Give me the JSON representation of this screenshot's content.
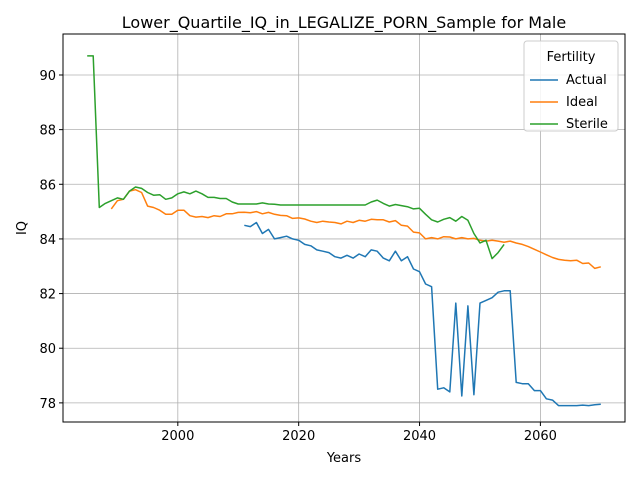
{
  "chart_data": {
    "type": "line",
    "title": "Lower_Quartile_IQ_in_LEGALIZE_PORN_Sample for Male",
    "xlabel": "Years",
    "ylabel": "IQ",
    "xlim": [
      1981,
      2074
    ],
    "ylim": [
      77.3,
      91.5
    ],
    "xticks": [
      2000,
      2020,
      2040,
      2060
    ],
    "yticks": [
      78,
      80,
      82,
      84,
      86,
      88,
      90
    ],
    "grid": true,
    "legend": {
      "title": "Fertility",
      "placement": "top-right"
    },
    "series": [
      {
        "name": "Actual",
        "color": "#1f77b4",
        "x": [
          2011,
          2012,
          2013,
          2014,
          2015,
          2016,
          2017,
          2018,
          2019,
          2020,
          2021,
          2022,
          2023,
          2024,
          2025,
          2026,
          2027,
          2028,
          2029,
          2030,
          2031,
          2032,
          2033,
          2034,
          2035,
          2036,
          2037,
          2038,
          2039,
          2040,
          2041,
          2042,
          2043,
          2044,
          2045,
          2046,
          2047,
          2048,
          2049,
          2050,
          2051,
          2052,
          2053,
          2054,
          2055,
          2056,
          2057,
          2058,
          2059,
          2060,
          2061,
          2062,
          2063,
          2064,
          2065,
          2066,
          2067,
          2068,
          2069,
          2070
        ],
        "values": [
          84.5,
          84.45,
          84.6,
          84.2,
          84.35,
          84.0,
          84.05,
          84.1,
          84.0,
          83.95,
          83.8,
          83.75,
          83.6,
          83.55,
          83.5,
          83.35,
          83.3,
          83.4,
          83.3,
          83.45,
          83.35,
          83.6,
          83.55,
          83.3,
          83.2,
          83.55,
          83.2,
          83.35,
          82.9,
          82.8,
          82.35,
          82.25,
          78.5,
          78.55,
          78.4,
          81.65,
          78.25,
          81.55,
          78.3,
          81.65,
          81.75,
          81.85,
          82.05,
          82.1,
          82.1,
          78.75,
          78.7,
          78.7,
          78.45,
          78.45,
          78.15,
          78.1,
          77.9,
          77.9,
          77.9,
          77.9,
          77.92,
          77.9,
          77.93,
          77.95
        ]
      },
      {
        "name": "Ideal",
        "color": "#ff7f0e",
        "x": [
          1989,
          1990,
          1991,
          1992,
          1993,
          1994,
          1995,
          1996,
          1997,
          1998,
          1999,
          2000,
          2001,
          2002,
          2003,
          2004,
          2005,
          2006,
          2007,
          2008,
          2009,
          2010,
          2011,
          2012,
          2013,
          2014,
          2015,
          2016,
          2017,
          2018,
          2019,
          2020,
          2021,
          2022,
          2023,
          2024,
          2025,
          2026,
          2027,
          2028,
          2029,
          2030,
          2031,
          2032,
          2033,
          2034,
          2035,
          2036,
          2037,
          2038,
          2039,
          2040,
          2041,
          2042,
          2043,
          2044,
          2045,
          2046,
          2047,
          2048,
          2049,
          2050,
          2051,
          2052,
          2053,
          2054,
          2055,
          2056,
          2057,
          2058,
          2059,
          2060,
          2061,
          2062,
          2063,
          2064,
          2065,
          2066,
          2067,
          2068,
          2069,
          2070
        ],
        "values": [
          85.1,
          85.4,
          85.45,
          85.75,
          85.8,
          85.7,
          85.2,
          85.15,
          85.05,
          84.9,
          84.9,
          85.05,
          85.05,
          84.85,
          84.8,
          84.82,
          84.78,
          84.85,
          84.82,
          84.92,
          84.92,
          84.97,
          84.98,
          84.96,
          85.0,
          84.92,
          84.97,
          84.9,
          84.86,
          84.85,
          84.75,
          84.77,
          84.73,
          84.65,
          84.6,
          84.65,
          84.62,
          84.6,
          84.55,
          84.65,
          84.6,
          84.68,
          84.65,
          84.72,
          84.7,
          84.7,
          84.62,
          84.67,
          84.5,
          84.47,
          84.25,
          84.22,
          84.0,
          84.05,
          84.0,
          84.08,
          84.07,
          84.0,
          84.05,
          84.0,
          84.02,
          83.95,
          83.92,
          83.95,
          83.92,
          83.88,
          83.92,
          83.85,
          83.8,
          83.72,
          83.62,
          83.52,
          83.42,
          83.32,
          83.25,
          83.22,
          83.2,
          83.22,
          83.1,
          83.12,
          82.92,
          82.98
        ]
      },
      {
        "name": "Sterile",
        "color": "#2ca02c",
        "x": [
          1985,
          1986,
          1987,
          1988,
          1989,
          1990,
          1991,
          1992,
          1993,
          1994,
          1995,
          1996,
          1997,
          1998,
          1999,
          2000,
          2001,
          2002,
          2003,
          2004,
          2005,
          2006,
          2007,
          2008,
          2009,
          2010,
          2011,
          2012,
          2013,
          2014,
          2015,
          2016,
          2017,
          2018,
          2019,
          2020,
          2021,
          2022,
          2023,
          2024,
          2025,
          2026,
          2027,
          2028,
          2029,
          2030,
          2031,
          2032,
          2033,
          2034,
          2035,
          2036,
          2037,
          2038,
          2039,
          2040,
          2041,
          2042,
          2043,
          2044,
          2045,
          2046,
          2047,
          2048,
          2049,
          2050,
          2051,
          2052,
          2053,
          2054
        ],
        "values": [
          90.7,
          90.7,
          85.15,
          85.3,
          85.4,
          85.5,
          85.45,
          85.75,
          85.9,
          85.85,
          85.7,
          85.6,
          85.62,
          85.45,
          85.5,
          85.65,
          85.72,
          85.65,
          85.75,
          85.65,
          85.52,
          85.52,
          85.48,
          85.48,
          85.35,
          85.28,
          85.28,
          85.28,
          85.28,
          85.32,
          85.28,
          85.27,
          85.24,
          85.24,
          85.24,
          85.24,
          85.24,
          85.24,
          85.24,
          85.24,
          85.24,
          85.24,
          85.24,
          85.24,
          85.24,
          85.24,
          85.24,
          85.35,
          85.42,
          85.3,
          85.2,
          85.26,
          85.22,
          85.18,
          85.1,
          85.12,
          84.9,
          84.7,
          84.62,
          84.72,
          84.78,
          84.65,
          84.82,
          84.68,
          84.2,
          83.85,
          83.95,
          83.28,
          83.5,
          83.8
        ]
      }
    ]
  }
}
